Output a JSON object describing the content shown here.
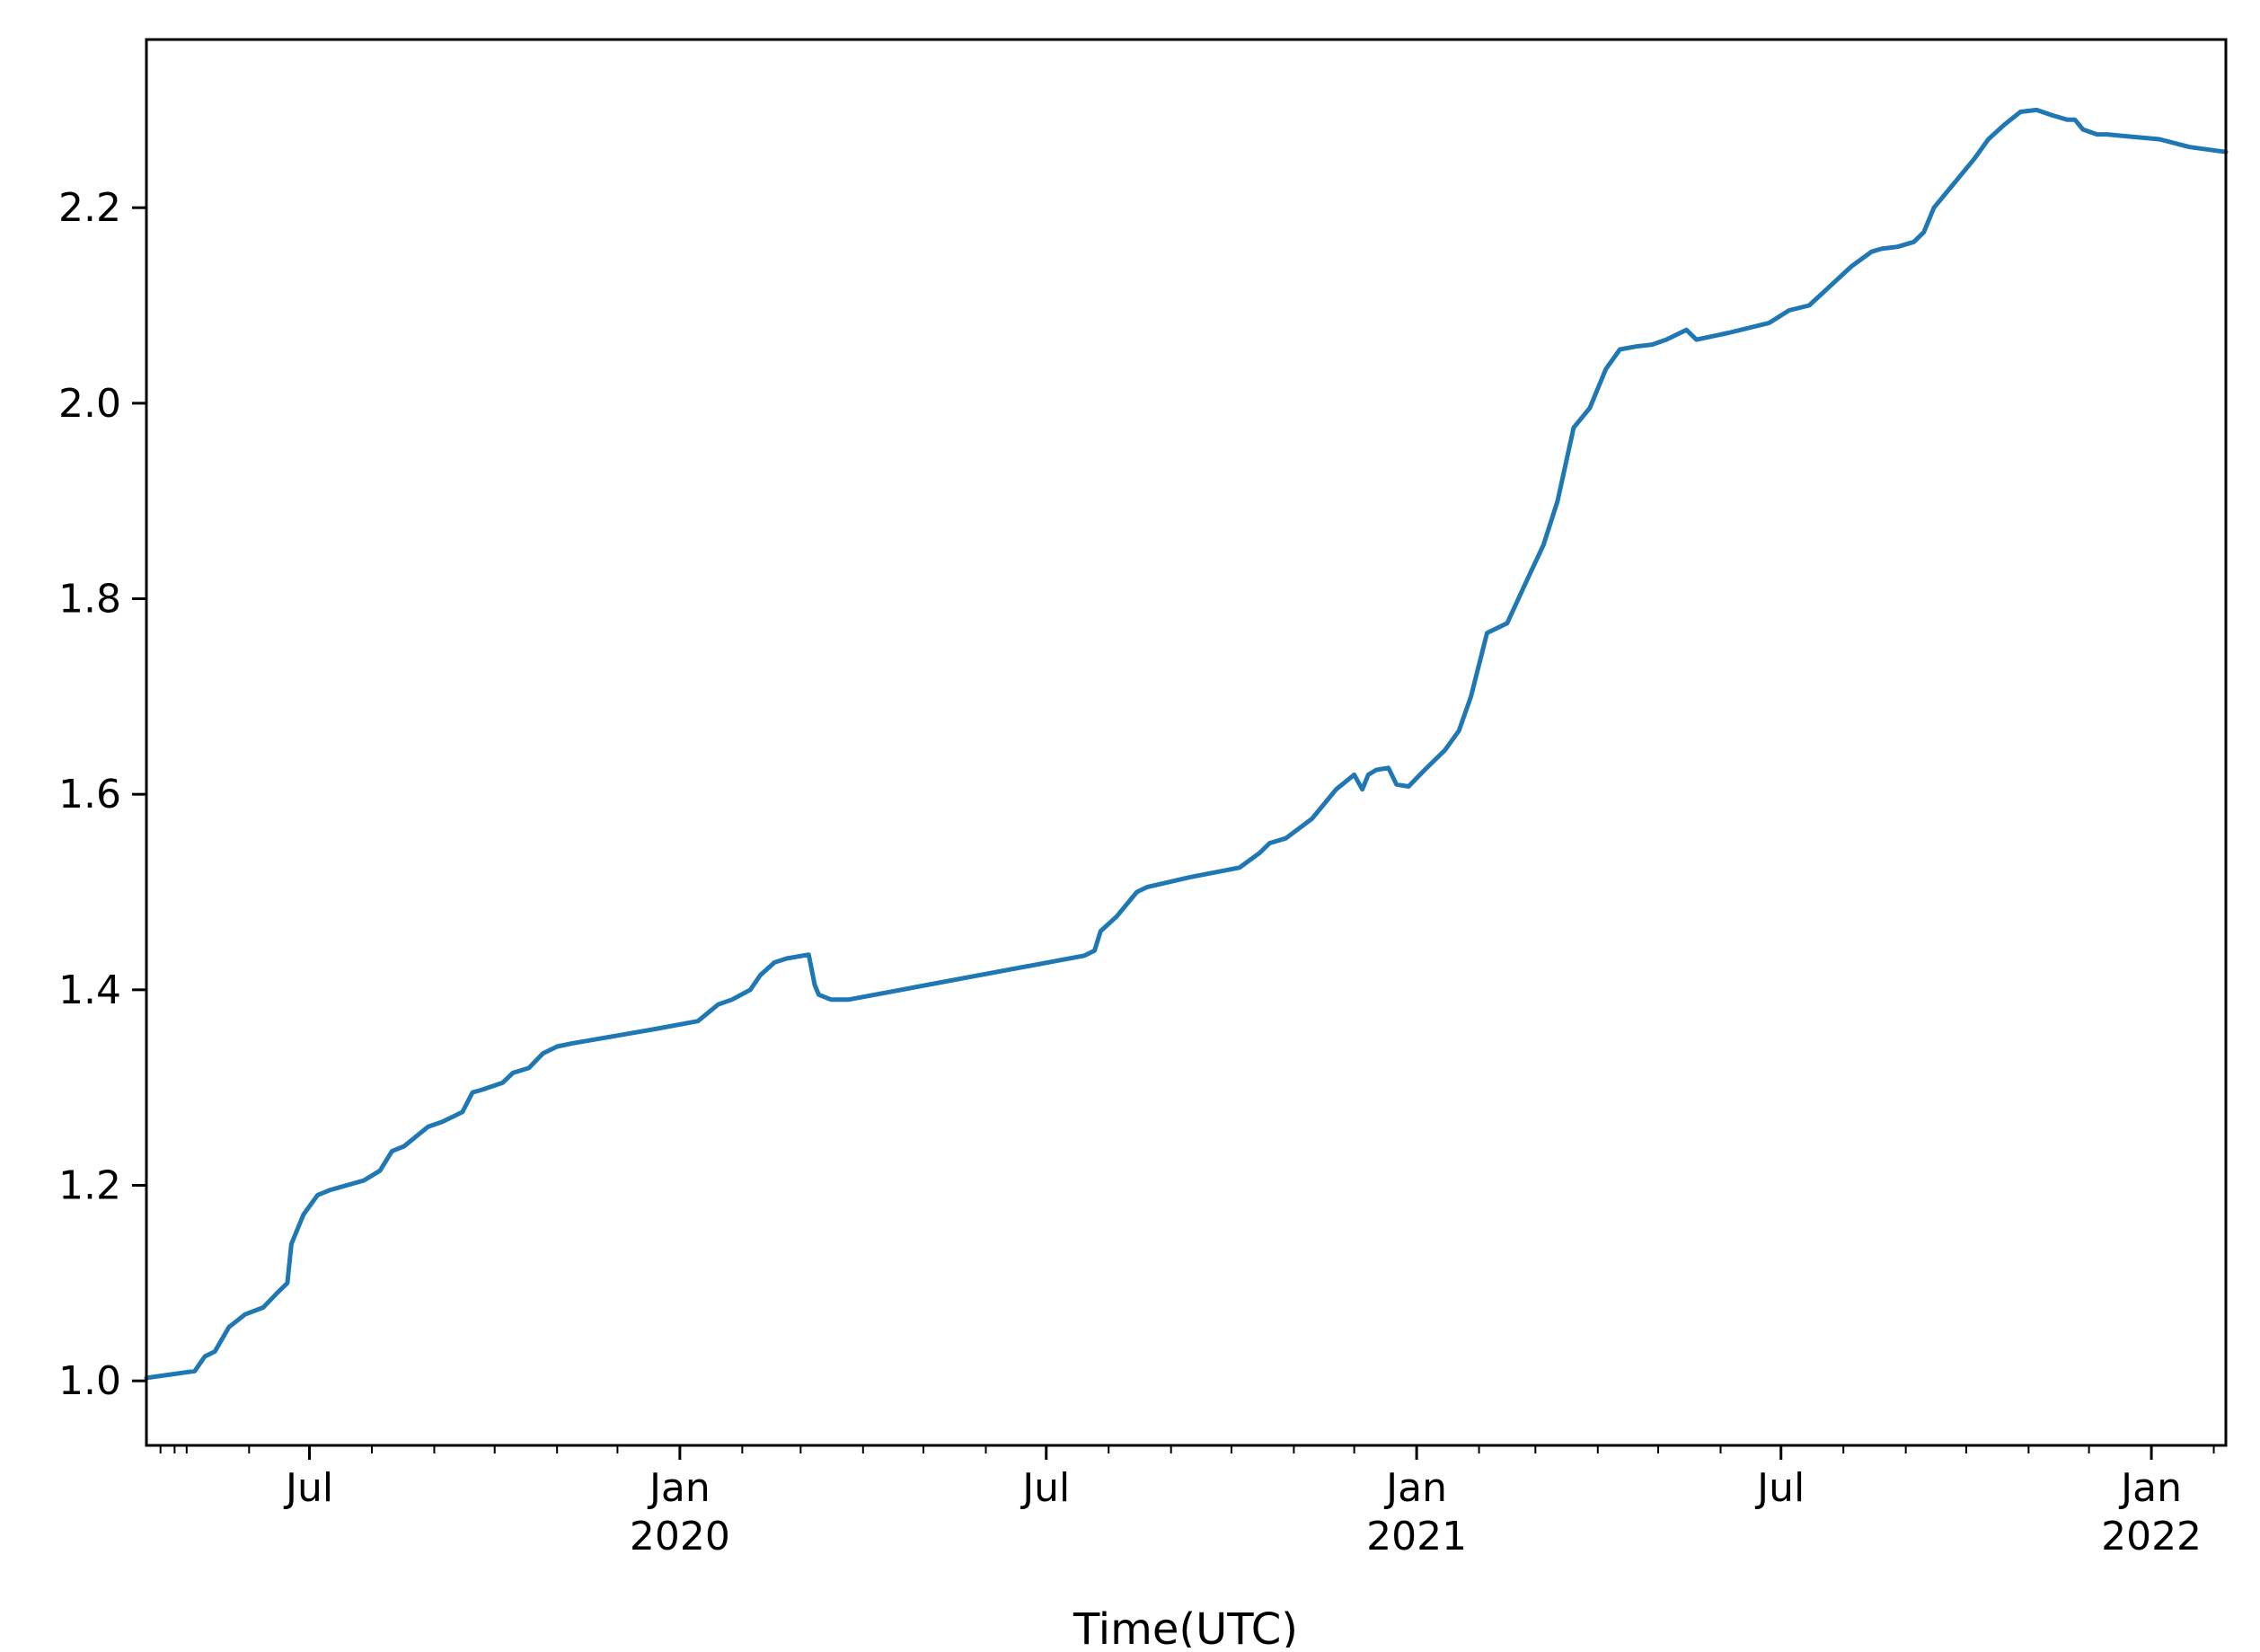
{
  "chart_data": {
    "type": "line",
    "title": "",
    "xlabel": "Time(UTC)",
    "ylabel": "",
    "ylim": [
      0.934,
      2.372
    ],
    "xlim": [
      "2019-04-11",
      "2022-02-07"
    ],
    "grid": false,
    "legend": "none",
    "y_ticks": [
      "1.0",
      "1.2",
      "1.4",
      "1.6",
      "1.8",
      "2.0",
      "2.2"
    ],
    "x_ticks": [
      {
        "date": "2019-07-01",
        "label": "Jul",
        "sublabel": ""
      },
      {
        "date": "2020-01-01",
        "label": "Jan",
        "sublabel": "2020"
      },
      {
        "date": "2020-07-01",
        "label": "Jul",
        "sublabel": ""
      },
      {
        "date": "2021-01-01",
        "label": "Jan",
        "sublabel": "2021"
      },
      {
        "date": "2021-07-01",
        "label": "Jul",
        "sublabel": ""
      },
      {
        "date": "2022-01-01",
        "label": "Jan",
        "sublabel": "2022"
      }
    ],
    "series": [
      {
        "color": "#1f77b4",
        "x": [
          "2019-04-11",
          "2019-05-05",
          "2019-05-10",
          "2019-05-15",
          "2019-05-22",
          "2019-05-30",
          "2019-06-08",
          "2019-06-15",
          "2019-06-20",
          "2019-06-22",
          "2019-06-28",
          "2019-07-05",
          "2019-07-11",
          "2019-07-28",
          "2019-08-05",
          "2019-08-11",
          "2019-08-17",
          "2019-08-23",
          "2019-08-29",
          "2019-09-05",
          "2019-09-15",
          "2019-09-20",
          "2019-09-25",
          "2019-10-05",
          "2019-10-10",
          "2019-10-18",
          "2019-10-25",
          "2019-11-01",
          "2019-11-08",
          "2019-12-20",
          "2020-01-10",
          "2020-01-20",
          "2020-01-27",
          "2020-02-05",
          "2020-02-10",
          "2020-02-17",
          "2020-02-23",
          "2020-03-05",
          "2020-03-08",
          "2020-03-10",
          "2020-03-16",
          "2020-03-25",
          "2020-07-20",
          "2020-07-25",
          "2020-07-28",
          "2020-08-05",
          "2020-08-15",
          "2020-08-20",
          "2020-09-10",
          "2020-10-05",
          "2020-10-15",
          "2020-10-20",
          "2020-10-28",
          "2020-11-10",
          "2020-11-22",
          "2020-12-01",
          "2020-12-05",
          "2020-12-08",
          "2020-12-12",
          "2020-12-18",
          "2020-12-22",
          "2020-12-28",
          "2021-01-05",
          "2021-01-15",
          "2021-01-22",
          "2021-01-28",
          "2021-02-05",
          "2021-02-15",
          "2021-02-25",
          "2021-03-05",
          "2021-03-12",
          "2021-03-20",
          "2021-03-28",
          "2021-04-05",
          "2021-04-12",
          "2021-04-20",
          "2021-04-28",
          "2021-05-05",
          "2021-05-15",
          "2021-05-20",
          "2021-06-05",
          "2021-06-25",
          "2021-07-05",
          "2021-07-15",
          "2021-08-05",
          "2021-08-15",
          "2021-08-20",
          "2021-08-28",
          "2021-09-05",
          "2021-09-10",
          "2021-09-15",
          "2021-09-25",
          "2021-10-05",
          "2021-10-12",
          "2021-10-20",
          "2021-10-28",
          "2021-11-05",
          "2021-11-12",
          "2021-11-20",
          "2021-11-24",
          "2021-11-28",
          "2021-12-05",
          "2021-12-10",
          "2021-12-20",
          "2022-01-05",
          "2022-01-20",
          "2022-02-07"
        ],
        "y": [
          1.003,
          1.01,
          1.025,
          1.03,
          1.055,
          1.068,
          1.075,
          1.09,
          1.1,
          1.14,
          1.17,
          1.19,
          1.195,
          1.205,
          1.215,
          1.235,
          1.24,
          1.25,
          1.26,
          1.265,
          1.275,
          1.295,
          1.298,
          1.305,
          1.315,
          1.32,
          1.335,
          1.342,
          1.345,
          1.36,
          1.368,
          1.385,
          1.39,
          1.4,
          1.415,
          1.428,
          1.432,
          1.436,
          1.405,
          1.395,
          1.39,
          1.39,
          1.435,
          1.44,
          1.46,
          1.475,
          1.5,
          1.505,
          1.515,
          1.525,
          1.54,
          1.55,
          1.555,
          1.575,
          1.605,
          1.62,
          1.605,
          1.62,
          1.625,
          1.627,
          1.61,
          1.608,
          1.625,
          1.645,
          1.665,
          1.7,
          1.765,
          1.775,
          1.82,
          1.855,
          1.9,
          1.975,
          1.995,
          2.035,
          2.055,
          2.058,
          2.06,
          2.065,
          2.075,
          2.065,
          2.072,
          2.082,
          2.095,
          2.1,
          2.14,
          2.155,
          2.158,
          2.16,
          2.165,
          2.175,
          2.2,
          2.225,
          2.25,
          2.27,
          2.285,
          2.298,
          2.3,
          2.295,
          2.29,
          2.29,
          2.28,
          2.275,
          2.275,
          2.273,
          2.27,
          2.262,
          2.257
        ]
      }
    ]
  }
}
